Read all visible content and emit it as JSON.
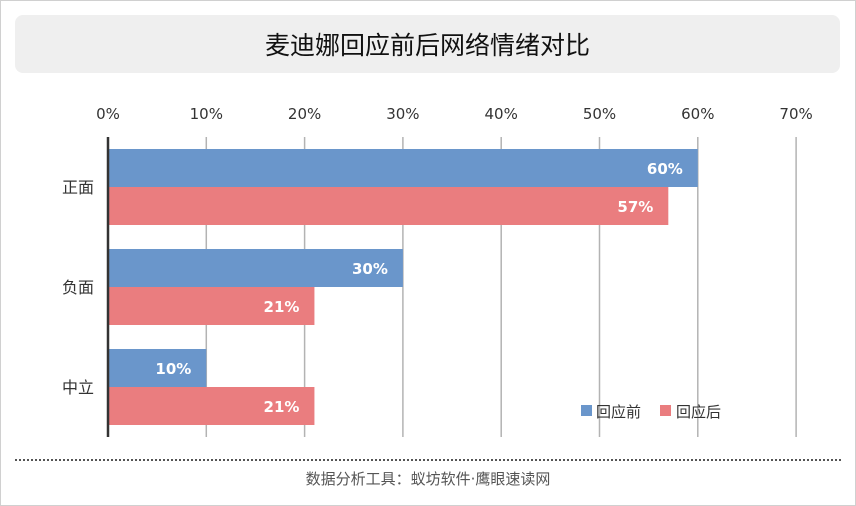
{
  "title": "麦迪娜回应前后网络情绪对比",
  "footer": "数据分析工具：蚁坊软件·鹰眼速读网",
  "colors": {
    "before": "#6a96cb",
    "after": "#ea7d7f"
  },
  "chart_data": {
    "type": "bar",
    "orientation": "horizontal",
    "title": "麦迪娜回应前后网络情绪对比",
    "categories": [
      "正面",
      "负面",
      "中立"
    ],
    "series": [
      {
        "name": "回应前",
        "values": [
          60,
          30,
          10
        ],
        "labels": [
          "60%",
          "30%",
          "10%"
        ]
      },
      {
        "name": "回应后",
        "values": [
          57,
          21,
          21
        ],
        "labels": [
          "57%",
          "21%",
          "21%"
        ]
      }
    ],
    "x_ticks": [
      "0%",
      "10%",
      "20%",
      "30%",
      "40%",
      "50%",
      "60%",
      "70%"
    ],
    "xlim": [
      0,
      70
    ],
    "grid": true,
    "legend": "bottom-right",
    "xlabel": "",
    "ylabel": ""
  }
}
